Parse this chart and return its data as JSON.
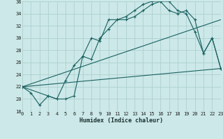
{
  "xlabel": "Humidex (Indice chaleur)",
  "bg_color": "#cce8e8",
  "grid_color": "#aed0d0",
  "line_color": "#1a6060",
  "xlim": [
    0,
    23
  ],
  "ylim": [
    18,
    36
  ],
  "xticks": [
    0,
    1,
    2,
    3,
    4,
    5,
    6,
    7,
    8,
    9,
    10,
    11,
    12,
    13,
    14,
    15,
    16,
    17,
    18,
    19,
    20,
    21,
    22,
    23
  ],
  "yticks": [
    18,
    20,
    22,
    24,
    26,
    28,
    30,
    32,
    34,
    36
  ],
  "line1_x": [
    0,
    1,
    2,
    3,
    4,
    5,
    6,
    7,
    8,
    9,
    10,
    11,
    12,
    13,
    14,
    15,
    16,
    17,
    18,
    19,
    20,
    21,
    22,
    23
  ],
  "line1_y": [
    22,
    21,
    19,
    20.5,
    20,
    23,
    25.5,
    27,
    30,
    29.5,
    33,
    33,
    33.5,
    34.5,
    35.5,
    36,
    36,
    34.5,
    34,
    34.5,
    33,
    27.5,
    30,
    25
  ],
  "line2_x": [
    0,
    3,
    4,
    5,
    6,
    7,
    8,
    9,
    10,
    11,
    12,
    13,
    14,
    15,
    16,
    17,
    18,
    19,
    20,
    21,
    22,
    23
  ],
  "line2_y": [
    22,
    20.5,
    20,
    20,
    20.5,
    27,
    26.5,
    30,
    31.5,
    33,
    33,
    33.5,
    34.5,
    35.5,
    36,
    36,
    34.5,
    34,
    31,
    27.5,
    30,
    25
  ],
  "line3_x": [
    0,
    23
  ],
  "line3_y": [
    22,
    33
  ],
  "line4_x": [
    0,
    23
  ],
  "line4_y": [
    22,
    25
  ]
}
